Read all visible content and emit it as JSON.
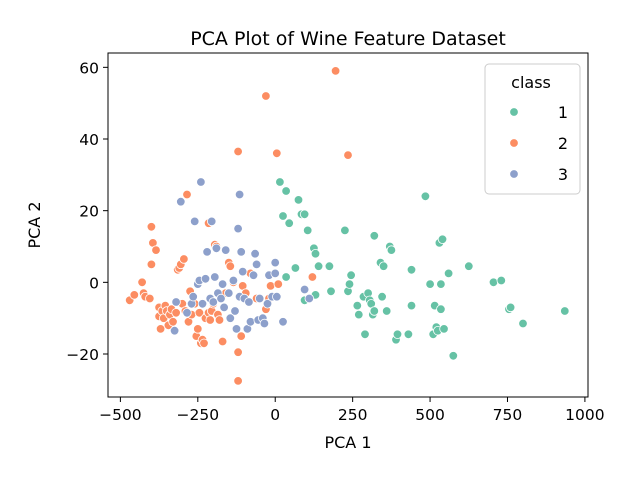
{
  "chart_data": {
    "type": "scatter",
    "title": "PCA Plot of Wine Feature Dataset",
    "xlabel": "PCA 1",
    "ylabel": "PCA 2",
    "xlim": [
      -540,
      1010
    ],
    "ylim": [
      -32,
      64
    ],
    "xticks": [
      -500,
      -250,
      0,
      250,
      500,
      750,
      1000
    ],
    "xtick_labels": [
      "−500",
      "−250",
      "0",
      "250",
      "500",
      "750",
      "1000"
    ],
    "yticks": [
      -20,
      0,
      20,
      40,
      60
    ],
    "ytick_labels": [
      "−20",
      "0",
      "20",
      "40",
      "60"
    ],
    "grid": false,
    "legend": {
      "title": "class",
      "placement": "top-right"
    },
    "series": [
      {
        "name": "1",
        "color": "#66c2a5",
        "points": [
          [
            15,
            28
          ],
          [
            35,
            25.5
          ],
          [
            45,
            16.5
          ],
          [
            75,
            23
          ],
          [
            85,
            19
          ],
          [
            95,
            19
          ],
          [
            105,
            14.5
          ],
          [
            125,
            9.5
          ],
          [
            130,
            8
          ],
          [
            140,
            4.5
          ],
          [
            175,
            4.5
          ],
          [
            65,
            4
          ],
          [
            25,
            18.5
          ],
          [
            35,
            1.5
          ],
          [
            95,
            -5
          ],
          [
            130,
            -3.5
          ],
          [
            180,
            -2.5
          ],
          [
            225,
            14.5
          ],
          [
            235,
            -2.5
          ],
          [
            240,
            -0.5
          ],
          [
            245,
            2
          ],
          [
            265,
            -6.5
          ],
          [
            270,
            -9
          ],
          [
            285,
            -4
          ],
          [
            290,
            -14.5
          ],
          [
            300,
            -3
          ],
          [
            305,
            -5
          ],
          [
            310,
            -6
          ],
          [
            315,
            -9
          ],
          [
            320,
            -8
          ],
          [
            320,
            13
          ],
          [
            340,
            5.5
          ],
          [
            345,
            -4
          ],
          [
            350,
            4.5
          ],
          [
            360,
            -8
          ],
          [
            370,
            10
          ],
          [
            375,
            9
          ],
          [
            390,
            -16
          ],
          [
            395,
            -14.5
          ],
          [
            430,
            -14.5
          ],
          [
            440,
            -6.5
          ],
          [
            440,
            3.5
          ],
          [
            485,
            24
          ],
          [
            500,
            -0.5
          ],
          [
            510,
            -14.5
          ],
          [
            515,
            -6.5
          ],
          [
            520,
            -12.5
          ],
          [
            525,
            -13.5
          ],
          [
            530,
            11
          ],
          [
            540,
            12
          ],
          [
            535,
            -0.5
          ],
          [
            535,
            -7.5
          ],
          [
            545,
            -13
          ],
          [
            560,
            2.5
          ],
          [
            575,
            -20.5
          ],
          [
            625,
            4.5
          ],
          [
            705,
            0
          ],
          [
            730,
            0.5
          ],
          [
            755,
            -7.5
          ],
          [
            760,
            -7
          ],
          [
            800,
            -11.5
          ],
          [
            935,
            -8
          ]
        ]
      },
      {
        "name": "2",
        "color": "#fc8d62",
        "points": [
          [
            -470,
            -5
          ],
          [
            -455,
            -3.5
          ],
          [
            -430,
            0
          ],
          [
            -425,
            -3
          ],
          [
            -420,
            -4
          ],
          [
            -405,
            -4.5
          ],
          [
            -400,
            15.5
          ],
          [
            -400,
            5
          ],
          [
            -395,
            11
          ],
          [
            -385,
            9
          ],
          [
            -375,
            -7
          ],
          [
            -375,
            -9.5
          ],
          [
            -370,
            -13
          ],
          [
            -365,
            -8
          ],
          [
            -360,
            -10
          ],
          [
            -355,
            -6.5
          ],
          [
            -350,
            -8
          ],
          [
            -345,
            -12
          ],
          [
            -340,
            -9
          ],
          [
            -335,
            -7.5
          ],
          [
            -330,
            -11
          ],
          [
            -320,
            -8.5
          ],
          [
            -315,
            3.5
          ],
          [
            -310,
            4
          ],
          [
            -305,
            5
          ],
          [
            -300,
            -6
          ],
          [
            -295,
            6.5
          ],
          [
            -290,
            -8
          ],
          [
            -285,
            24.5
          ],
          [
            -280,
            -11
          ],
          [
            -275,
            -2.5
          ],
          [
            -270,
            -9
          ],
          [
            -260,
            -6
          ],
          [
            -255,
            -15
          ],
          [
            -250,
            -13
          ],
          [
            -245,
            -8.5
          ],
          [
            -240,
            -17
          ],
          [
            -235,
            -16
          ],
          [
            -230,
            -17
          ],
          [
            -225,
            -10
          ],
          [
            -215,
            -8.5
          ],
          [
            -210,
            -10.5
          ],
          [
            -205,
            -8
          ],
          [
            -200,
            -6
          ],
          [
            -195,
            10.5
          ],
          [
            -190,
            10
          ],
          [
            -185,
            -9
          ],
          [
            -180,
            -10.5
          ],
          [
            -170,
            -16.5
          ],
          [
            -160,
            -3
          ],
          [
            -150,
            5.5
          ],
          [
            -145,
            4.5
          ],
          [
            -135,
            0
          ],
          [
            -120,
            -19.5
          ],
          [
            -120,
            -27.5
          ],
          [
            -120,
            36.5
          ],
          [
            -110,
            -15
          ],
          [
            -105,
            -1
          ],
          [
            -95,
            -3
          ],
          [
            -80,
            2.5
          ],
          [
            -60,
            -4.5
          ],
          [
            -30,
            -7.5
          ],
          [
            -30,
            52
          ],
          [
            -20,
            -4.5
          ],
          [
            -15,
            -1
          ],
          [
            10,
            -0.5
          ],
          [
            5,
            36
          ],
          [
            120,
            1.5
          ],
          [
            195,
            59
          ],
          [
            235,
            35.5
          ],
          [
            -215,
            16.5
          ]
        ]
      },
      {
        "name": "3",
        "color": "#8da0cb",
        "points": [
          [
            -325,
            -13.5
          ],
          [
            -320,
            -5.5
          ],
          [
            -305,
            22.5
          ],
          [
            -285,
            -8.5
          ],
          [
            -270,
            -6
          ],
          [
            -265,
            -4
          ],
          [
            -260,
            17
          ],
          [
            -250,
            -0.5
          ],
          [
            -245,
            0.5
          ],
          [
            -240,
            28
          ],
          [
            -235,
            -6
          ],
          [
            -225,
            1
          ],
          [
            -220,
            8.5
          ],
          [
            -210,
            -4.5
          ],
          [
            -205,
            17
          ],
          [
            -200,
            -5.5
          ],
          [
            -195,
            1.5
          ],
          [
            -190,
            9.5
          ],
          [
            -185,
            -3
          ],
          [
            -175,
            -4.5
          ],
          [
            -170,
            -0.5
          ],
          [
            -165,
            -7
          ],
          [
            -160,
            9
          ],
          [
            -150,
            -3
          ],
          [
            -145,
            -10
          ],
          [
            -135,
            0.5
          ],
          [
            -130,
            -8
          ],
          [
            -125,
            -13
          ],
          [
            -120,
            15
          ],
          [
            -115,
            24.5
          ],
          [
            -115,
            -4
          ],
          [
            -110,
            8.5
          ],
          [
            -105,
            3
          ],
          [
            -100,
            -4.5
          ],
          [
            -90,
            -13
          ],
          [
            -85,
            -5.5
          ],
          [
            -80,
            -11
          ],
          [
            -70,
            2
          ],
          [
            -65,
            8
          ],
          [
            -60,
            5
          ],
          [
            -55,
            -10.5
          ],
          [
            -50,
            -4.5
          ],
          [
            -40,
            -10
          ],
          [
            -35,
            -11.5
          ],
          [
            -25,
            -6
          ],
          [
            -20,
            2
          ],
          [
            -10,
            -4
          ],
          [
            0,
            5.5
          ],
          [
            0,
            2.5
          ],
          [
            5,
            -4
          ],
          [
            25,
            -11
          ],
          [
            95,
            -2
          ],
          [
            110,
            -4.5
          ]
        ]
      }
    ]
  }
}
